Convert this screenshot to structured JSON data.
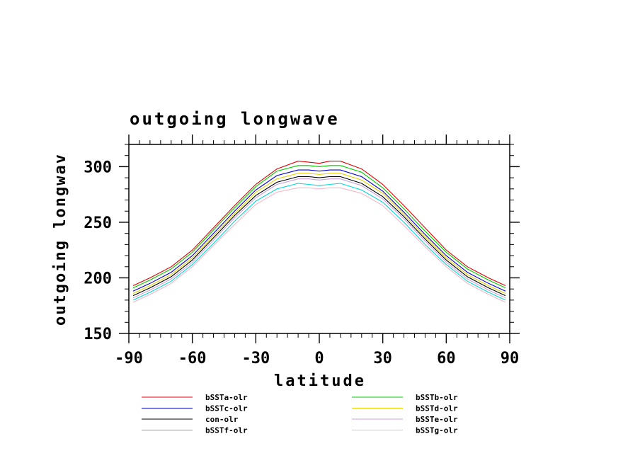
{
  "chart_data": {
    "type": "line",
    "title": "outgoing longwave",
    "xlabel": "latitude",
    "ylabel": "outgoing longwav",
    "xlim": [
      -90,
      90
    ],
    "ylim": [
      150,
      320
    ],
    "xticks": [
      -90,
      -60,
      -30,
      0,
      30,
      60,
      90
    ],
    "yticks": [
      150,
      200,
      250,
      300
    ],
    "x": [
      -88,
      -80,
      -70,
      -60,
      -50,
      -40,
      -30,
      -20,
      -10,
      -5,
      0,
      5,
      10,
      20,
      30,
      40,
      50,
      60,
      70,
      80,
      88
    ],
    "series": [
      {
        "name": "bSSTa-olr",
        "color": "#e00000",
        "values": [
          193,
          200,
          210,
          225,
          245,
          265,
          284,
          298,
          305,
          304,
          303,
          305,
          305,
          298,
          284,
          265,
          245,
          225,
          210,
          200,
          193
        ]
      },
      {
        "name": "bSSTb-olr",
        "color": "#00cc00",
        "values": [
          191,
          198,
          208,
          223,
          243,
          263,
          282,
          296,
          301,
          301,
          300,
          301,
          301,
          295,
          281,
          262,
          242,
          223,
          208,
          198,
          191
        ]
      },
      {
        "name": "bSSTc-olr",
        "color": "#0000cc",
        "values": [
          188,
          195,
          205,
          220,
          240,
          260,
          279,
          292,
          297,
          297,
          296,
          297,
          297,
          291,
          278,
          259,
          239,
          220,
          205,
          195,
          188
        ]
      },
      {
        "name": "bSSTd-olr",
        "color": "#e8d000",
        "values": [
          186,
          193,
          203,
          218,
          238,
          258,
          277,
          289,
          294,
          294,
          293,
          294,
          294,
          288,
          276,
          257,
          237,
          218,
          203,
          193,
          186
        ]
      },
      {
        "name": "con-olr",
        "color": "#000000",
        "values": [
          184,
          191,
          201,
          216,
          236,
          256,
          274,
          286,
          291,
          291,
          290,
          291,
          291,
          285,
          273,
          255,
          235,
          216,
          201,
          191,
          184
        ]
      },
      {
        "name": "bSSTe-olr",
        "color": "#c8a0e0",
        "values": [
          182,
          189,
          199,
          214,
          234,
          254,
          272,
          284,
          289,
          289,
          288,
          289,
          289,
          283,
          271,
          253,
          233,
          214,
          199,
          189,
          182
        ]
      },
      {
        "name": "bSSTf-olr",
        "color": "#00d8d8",
        "values": [
          180,
          187,
          197,
          212,
          231,
          251,
          269,
          280,
          285,
          284,
          283,
          284,
          285,
          279,
          268,
          250,
          230,
          212,
          197,
          187,
          180
        ]
      },
      {
        "name": "bSSTg-olr",
        "color": "#f4b8c8",
        "values": [
          178,
          185,
          195,
          210,
          229,
          248,
          266,
          277,
          281,
          281,
          280,
          281,
          281,
          276,
          265,
          247,
          228,
          210,
          195,
          185,
          178
        ]
      }
    ],
    "legend": {
      "placement": "bottom",
      "left_column": [
        "bSSTa-olr",
        "bSSTc-olr",
        "con-olr",
        "bSSTf-olr"
      ],
      "right_column": [
        "bSSTb-olr",
        "bSSTd-olr",
        "bSSTe-olr",
        "bSSTg-olr"
      ]
    },
    "grid": false
  }
}
